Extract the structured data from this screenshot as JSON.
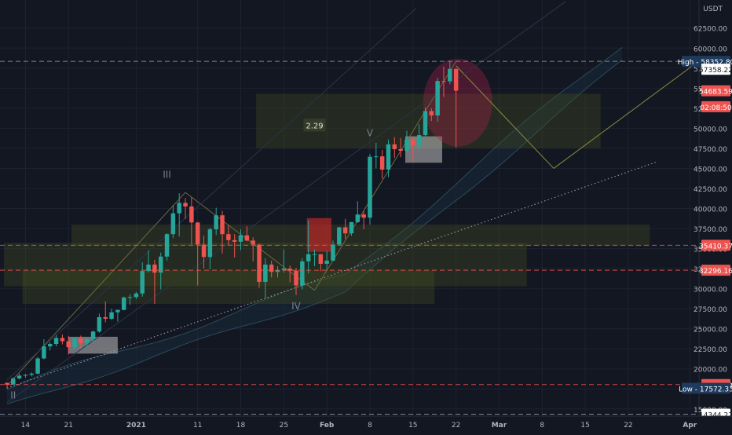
{
  "chart_data": {
    "type": "candlestick",
    "title": "",
    "symbol_currency": "USDT",
    "y_axis": {
      "min": 14100,
      "max": 66000,
      "ticks": [
        15000,
        17500,
        20000,
        22500,
        25000,
        27500,
        30000,
        32500,
        35000,
        37500,
        40000,
        42500,
        45000,
        47500,
        50000,
        52500,
        55000,
        57500,
        60000,
        62500
      ],
      "tick_labels": [
        "15000.00",
        "17500.00",
        "20000.00",
        "22500.00",
        "25000.00",
        "27500.00",
        "30000.00",
        "32500.00",
        "35000.00",
        "37500.00",
        "40000.00",
        "42500.00",
        "45000.00",
        "47500.00",
        "50000.00",
        "52500.00",
        "55000.00",
        "57500.00",
        "60000.00",
        "62500.00"
      ]
    },
    "x_axis": {
      "start_date": "2020-12-11",
      "end_date": "2021-04-03",
      "tick_dates": [
        "2020-12-14",
        "2020-12-21",
        "2021-01-01",
        "2021-01-11",
        "2021-01-18",
        "2021-01-25",
        "2021-02-01",
        "2021-02-08",
        "2021-02-15",
        "2021-02-22",
        "2021-03-01",
        "2021-03-08",
        "2021-03-15",
        "2021-03-22",
        "2021-04-01"
      ],
      "tick_labels": [
        "14",
        "21",
        "2021",
        "11",
        "18",
        "25",
        "Feb",
        "8",
        "15",
        "22",
        "Mar",
        "8",
        "15",
        "22",
        "Apr"
      ],
      "bold_ticks": [
        "2021",
        "Feb",
        "Mar",
        "Apr"
      ]
    },
    "candles": [
      {
        "d": "2020-12-11",
        "o": 18250,
        "h": 18300,
        "l": 17572,
        "c": 18036
      },
      {
        "d": "2020-12-12",
        "o": 18036,
        "h": 18950,
        "l": 18000,
        "c": 18800
      },
      {
        "d": "2020-12-13",
        "o": 18800,
        "h": 19400,
        "l": 18700,
        "c": 19150
      },
      {
        "d": "2020-12-14",
        "o": 19150,
        "h": 19350,
        "l": 18900,
        "c": 19250
      },
      {
        "d": "2020-12-15",
        "o": 19250,
        "h": 19550,
        "l": 19050,
        "c": 19400
      },
      {
        "d": "2020-12-16",
        "o": 19400,
        "h": 21500,
        "l": 19300,
        "c": 21300
      },
      {
        "d": "2020-12-17",
        "o": 21300,
        "h": 23700,
        "l": 21200,
        "c": 22800
      },
      {
        "d": "2020-12-18",
        "o": 22800,
        "h": 23300,
        "l": 22300,
        "c": 23100
      },
      {
        "d": "2020-12-19",
        "o": 23100,
        "h": 24200,
        "l": 22800,
        "c": 23850
      },
      {
        "d": "2020-12-20",
        "o": 23850,
        "h": 24300,
        "l": 23050,
        "c": 23450
      },
      {
        "d": "2020-12-21",
        "o": 23450,
        "h": 24100,
        "l": 21800,
        "c": 22700
      },
      {
        "d": "2020-12-22",
        "o": 22700,
        "h": 23850,
        "l": 22350,
        "c": 23800
      },
      {
        "d": "2020-12-23",
        "o": 23800,
        "h": 24150,
        "l": 22600,
        "c": 23200
      },
      {
        "d": "2020-12-24",
        "o": 23200,
        "h": 23800,
        "l": 22700,
        "c": 23700
      },
      {
        "d": "2020-12-25",
        "o": 23700,
        "h": 24800,
        "l": 23400,
        "c": 24650
      },
      {
        "d": "2020-12-26",
        "o": 24650,
        "h": 26900,
        "l": 24500,
        "c": 26450
      },
      {
        "d": "2020-12-27",
        "o": 26450,
        "h": 28400,
        "l": 25800,
        "c": 26250
      },
      {
        "d": "2020-12-28",
        "o": 26250,
        "h": 27500,
        "l": 26100,
        "c": 27050
      },
      {
        "d": "2020-12-29",
        "o": 27050,
        "h": 27400,
        "l": 25900,
        "c": 27350
      },
      {
        "d": "2020-12-30",
        "o": 27350,
        "h": 29000,
        "l": 27300,
        "c": 28900
      },
      {
        "d": "2020-12-31",
        "o": 28900,
        "h": 29300,
        "l": 28000,
        "c": 28950
      },
      {
        "d": "2021-01-01",
        "o": 28950,
        "h": 29600,
        "l": 28700,
        "c": 29400
      },
      {
        "d": "2021-01-02",
        "o": 29400,
        "h": 33300,
        "l": 29000,
        "c": 32200
      },
      {
        "d": "2021-01-03",
        "o": 32200,
        "h": 34800,
        "l": 32000,
        "c": 33000
      },
      {
        "d": "2021-01-04",
        "o": 33000,
        "h": 33600,
        "l": 28100,
        "c": 32000
      },
      {
        "d": "2021-01-05",
        "o": 32000,
        "h": 34500,
        "l": 29900,
        "c": 34000
      },
      {
        "d": "2021-01-06",
        "o": 34000,
        "h": 36900,
        "l": 33500,
        "c": 36800
      },
      {
        "d": "2021-01-07",
        "o": 36800,
        "h": 40400,
        "l": 36300,
        "c": 39400
      },
      {
        "d": "2021-01-08",
        "o": 39400,
        "h": 41900,
        "l": 36500,
        "c": 40700
      },
      {
        "d": "2021-01-09",
        "o": 40700,
        "h": 41300,
        "l": 38700,
        "c": 40250
      },
      {
        "d": "2021-01-10",
        "o": 40250,
        "h": 41400,
        "l": 35500,
        "c": 38250
      },
      {
        "d": "2021-01-11",
        "o": 38250,
        "h": 38300,
        "l": 30400,
        "c": 35500
      },
      {
        "d": "2021-01-12",
        "o": 35500,
        "h": 36600,
        "l": 32500,
        "c": 33950
      },
      {
        "d": "2021-01-13",
        "o": 33950,
        "h": 37600,
        "l": 32400,
        "c": 37400
      },
      {
        "d": "2021-01-14",
        "o": 37400,
        "h": 40100,
        "l": 36700,
        "c": 39150
      },
      {
        "d": "2021-01-15",
        "o": 39150,
        "h": 39700,
        "l": 34400,
        "c": 36800
      },
      {
        "d": "2021-01-16",
        "o": 36800,
        "h": 37900,
        "l": 35400,
        "c": 36050
      },
      {
        "d": "2021-01-17",
        "o": 36050,
        "h": 36800,
        "l": 33900,
        "c": 35850
      },
      {
        "d": "2021-01-18",
        "o": 35850,
        "h": 37400,
        "l": 34800,
        "c": 36650
      },
      {
        "d": "2021-01-19",
        "o": 36650,
        "h": 37800,
        "l": 35900,
        "c": 36000
      },
      {
        "d": "2021-01-20",
        "o": 36000,
        "h": 36400,
        "l": 33400,
        "c": 35500
      },
      {
        "d": "2021-01-21",
        "o": 35500,
        "h": 35600,
        "l": 30100,
        "c": 30850
      },
      {
        "d": "2021-01-22",
        "o": 30850,
        "h": 33800,
        "l": 28800,
        "c": 33000
      },
      {
        "d": "2021-01-23",
        "o": 33000,
        "h": 33500,
        "l": 31400,
        "c": 32100
      },
      {
        "d": "2021-01-24",
        "o": 32100,
        "h": 32800,
        "l": 31400,
        "c": 32300
      },
      {
        "d": "2021-01-25",
        "o": 32300,
        "h": 34900,
        "l": 32000,
        "c": 32500
      },
      {
        "d": "2021-01-26",
        "o": 32500,
        "h": 32900,
        "l": 30800,
        "c": 32250
      },
      {
        "d": "2021-01-27",
        "o": 32250,
        "h": 32600,
        "l": 29200,
        "c": 30400
      },
      {
        "d": "2021-01-28",
        "o": 30400,
        "h": 33800,
        "l": 29900,
        "c": 33400
      },
      {
        "d": "2021-01-29",
        "o": 33400,
        "h": 38500,
        "l": 31900,
        "c": 34300
      },
      {
        "d": "2021-01-30",
        "o": 34300,
        "h": 34900,
        "l": 32800,
        "c": 34300
      },
      {
        "d": "2021-01-31",
        "o": 34300,
        "h": 34300,
        "l": 32200,
        "c": 33100
      },
      {
        "d": "2021-02-01",
        "o": 33100,
        "h": 34700,
        "l": 32300,
        "c": 33500
      },
      {
        "d": "2021-02-02",
        "o": 33500,
        "h": 36000,
        "l": 33400,
        "c": 35500
      },
      {
        "d": "2021-02-03",
        "o": 35500,
        "h": 37700,
        "l": 35400,
        "c": 37650
      },
      {
        "d": "2021-02-04",
        "o": 37650,
        "h": 38700,
        "l": 36200,
        "c": 36900
      },
      {
        "d": "2021-02-05",
        "o": 36900,
        "h": 38300,
        "l": 36600,
        "c": 38300
      },
      {
        "d": "2021-02-06",
        "o": 38300,
        "h": 40900,
        "l": 38200,
        "c": 39250
      },
      {
        "d": "2021-02-07",
        "o": 39250,
        "h": 39700,
        "l": 37400,
        "c": 38850
      },
      {
        "d": "2021-02-08",
        "o": 38850,
        "h": 46800,
        "l": 38000,
        "c": 46450
      },
      {
        "d": "2021-02-09",
        "o": 46450,
        "h": 48200,
        "l": 45000,
        "c": 46500
      },
      {
        "d": "2021-02-10",
        "o": 46500,
        "h": 47300,
        "l": 43700,
        "c": 44850
      },
      {
        "d": "2021-02-11",
        "o": 44850,
        "h": 48600,
        "l": 43900,
        "c": 48000
      },
      {
        "d": "2021-02-12",
        "o": 48000,
        "h": 48900,
        "l": 46300,
        "c": 47400
      },
      {
        "d": "2021-02-13",
        "o": 47400,
        "h": 48800,
        "l": 46400,
        "c": 47200
      },
      {
        "d": "2021-02-14",
        "o": 47200,
        "h": 49700,
        "l": 47000,
        "c": 48600
      },
      {
        "d": "2021-02-15",
        "o": 48600,
        "h": 49000,
        "l": 45800,
        "c": 47900
      },
      {
        "d": "2021-02-16",
        "o": 47900,
        "h": 50500,
        "l": 47100,
        "c": 49150
      },
      {
        "d": "2021-02-17",
        "o": 49150,
        "h": 52600,
        "l": 48900,
        "c": 52150
      },
      {
        "d": "2021-02-18",
        "o": 52150,
        "h": 52500,
        "l": 50900,
        "c": 51600
      },
      {
        "d": "2021-02-19",
        "o": 51600,
        "h": 56300,
        "l": 50800,
        "c": 55900
      },
      {
        "d": "2021-02-20",
        "o": 55900,
        "h": 57700,
        "l": 53900,
        "c": 55850
      },
      {
        "d": "2021-02-21",
        "o": 55850,
        "h": 58352,
        "l": 55500,
        "c": 57400
      },
      {
        "d": "2021-02-22",
        "o": 57400,
        "h": 57500,
        "l": 47600,
        "c": 54684
      }
    ],
    "annotations": {
      "wave_labels": [
        {
          "text": "II",
          "d": "2020-12-12",
          "y": 16300
        },
        {
          "text": "III",
          "d": "2021-01-06",
          "y": 43800
        },
        {
          "text": "IV",
          "d": "2021-01-27",
          "y": 27400
        },
        {
          "text": "V",
          "d": "2021-02-08",
          "y": 49000
        }
      ],
      "ratio_label": "2.29",
      "ratio_pos": {
        "d": "2021-01-30",
        "y": 50300
      }
    },
    "price_labels": [
      {
        "name": "high",
        "text": "High - 58352.80",
        "price": 58352.8,
        "color": "#1e3a5c",
        "tag": true,
        "line": true
      },
      {
        "name": "last-close",
        "text": "57358.22",
        "price": 57358.22,
        "color": "#ffffff",
        "tag": true
      },
      {
        "name": "current-price",
        "text": "54683.59",
        "price": 54683.59,
        "color": "#ef5350",
        "tag": true
      },
      {
        "name": "countdown",
        "text": "02:08:50",
        "price": 52700,
        "color": "#ef5350",
        "tag": true
      },
      {
        "name": "level-35410",
        "text": "35410.37",
        "price": 35410.37,
        "color": "#ef5350",
        "tag": true,
        "line": true
      },
      {
        "name": "level-32296",
        "text": "32296.16",
        "price": 32296.16,
        "color": "#ef5350",
        "tag": true,
        "line": true
      },
      {
        "name": "level-18036",
        "text": "18036.53",
        "price": 18036.53,
        "color": "#ef5350",
        "tag": true,
        "line": true
      },
      {
        "name": "low",
        "text": "Low - 17572.33",
        "price": 17572.33,
        "color": "#1e3a5c",
        "tag": true
      },
      {
        "name": "level-14344",
        "text": "14344.22",
        "price": 14344.22,
        "color": "#ffffff",
        "tag": true,
        "line": true
      }
    ],
    "colors": {
      "background": "#131722",
      "up": "#26a69a",
      "down": "#ef5350",
      "grid": "#1e2230",
      "axis_text": "#b2b5be",
      "zone": "#4b5320"
    },
    "grid": true
  }
}
